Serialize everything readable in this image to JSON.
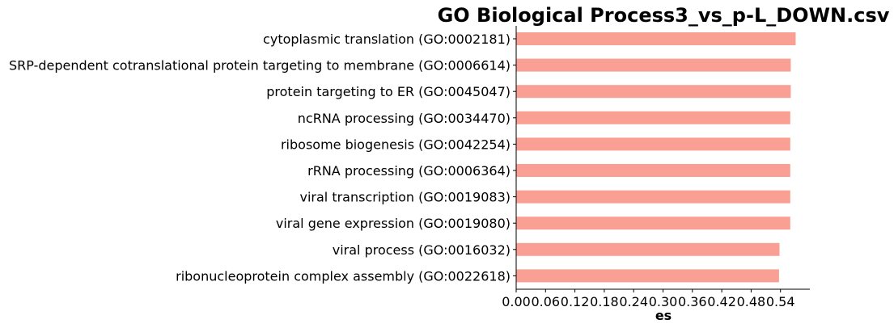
{
  "chart_data": {
    "type": "bar",
    "orientation": "horizontal",
    "title": "GO Biological Process3_vs_p-L_DOWN.csv",
    "xlabel": "es",
    "ylabel": "",
    "xlim": [
      0.0,
      0.6
    ],
    "xticks": [
      "0.00",
      "0.06",
      "0.12",
      "0.18",
      "0.24",
      "0.30",
      "0.36",
      "0.42",
      "0.48",
      "0.54"
    ],
    "xtick_values": [
      0.0,
      0.06,
      0.12,
      0.18,
      0.24,
      0.3,
      0.36,
      0.42,
      0.48,
      0.54
    ],
    "grid": false,
    "bar_color": "#fa9f93",
    "categories": [
      "cytoplasmic translation (GO:0002181)",
      "SRP-dependent cotranslational protein targeting to membrane (GO:0006614)",
      "protein targeting to ER (GO:0045047)",
      "ncRNA processing (GO:0034470)",
      "ribosome biogenesis (GO:0042254)",
      "rRNA processing (GO:0006364)",
      "viral transcription (GO:0019083)",
      "viral gene expression (GO:0019080)",
      "viral process (GO:0016032)",
      "ribonucleoprotein complex assembly (GO:0022618)"
    ],
    "values": [
      0.571,
      0.561,
      0.561,
      0.56,
      0.56,
      0.56,
      0.56,
      0.56,
      0.538,
      0.537
    ]
  }
}
